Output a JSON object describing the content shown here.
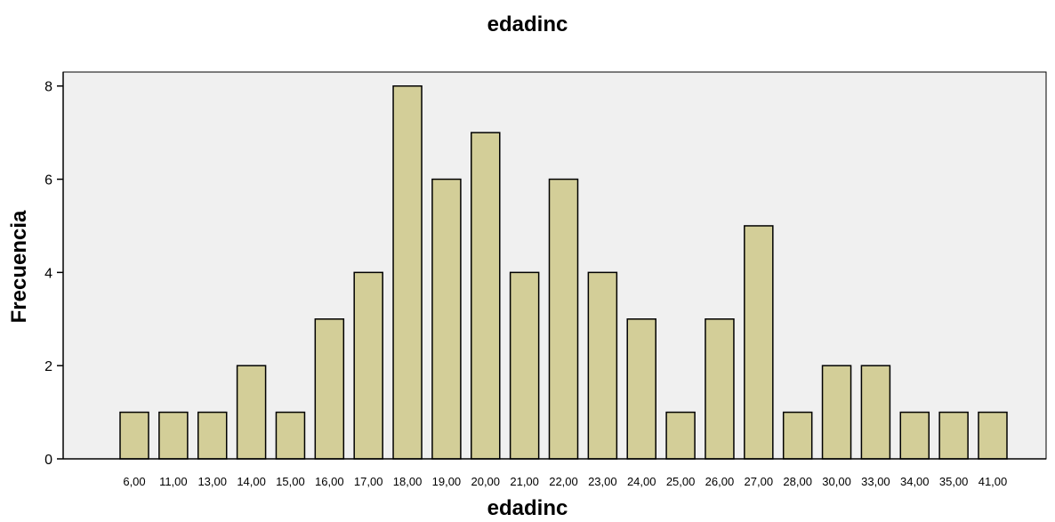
{
  "chart_data": {
    "type": "bar",
    "title": "edadinc",
    "xlabel": "edadinc",
    "ylabel": "Frecuencia",
    "categories": [
      "6,00",
      "11,00",
      "13,00",
      "14,00",
      "15,00",
      "16,00",
      "17,00",
      "18,00",
      "19,00",
      "20,00",
      "21,00",
      "22,00",
      "23,00",
      "24,00",
      "25,00",
      "26,00",
      "27,00",
      "28,00",
      "30,00",
      "33,00",
      "34,00",
      "35,00",
      "41,00"
    ],
    "values": [
      1,
      1,
      1,
      2,
      1,
      3,
      4,
      8,
      6,
      7,
      4,
      6,
      4,
      3,
      1,
      3,
      5,
      1,
      2,
      2,
      1,
      1,
      1
    ],
    "ylim": [
      0,
      8.3
    ],
    "yticks": [
      0,
      2,
      4,
      6,
      8
    ],
    "grid": false,
    "colors": {
      "bar_fill": "#d3ce98",
      "bar_stroke": "#000000",
      "plot_background": "#f0f0f0"
    }
  }
}
